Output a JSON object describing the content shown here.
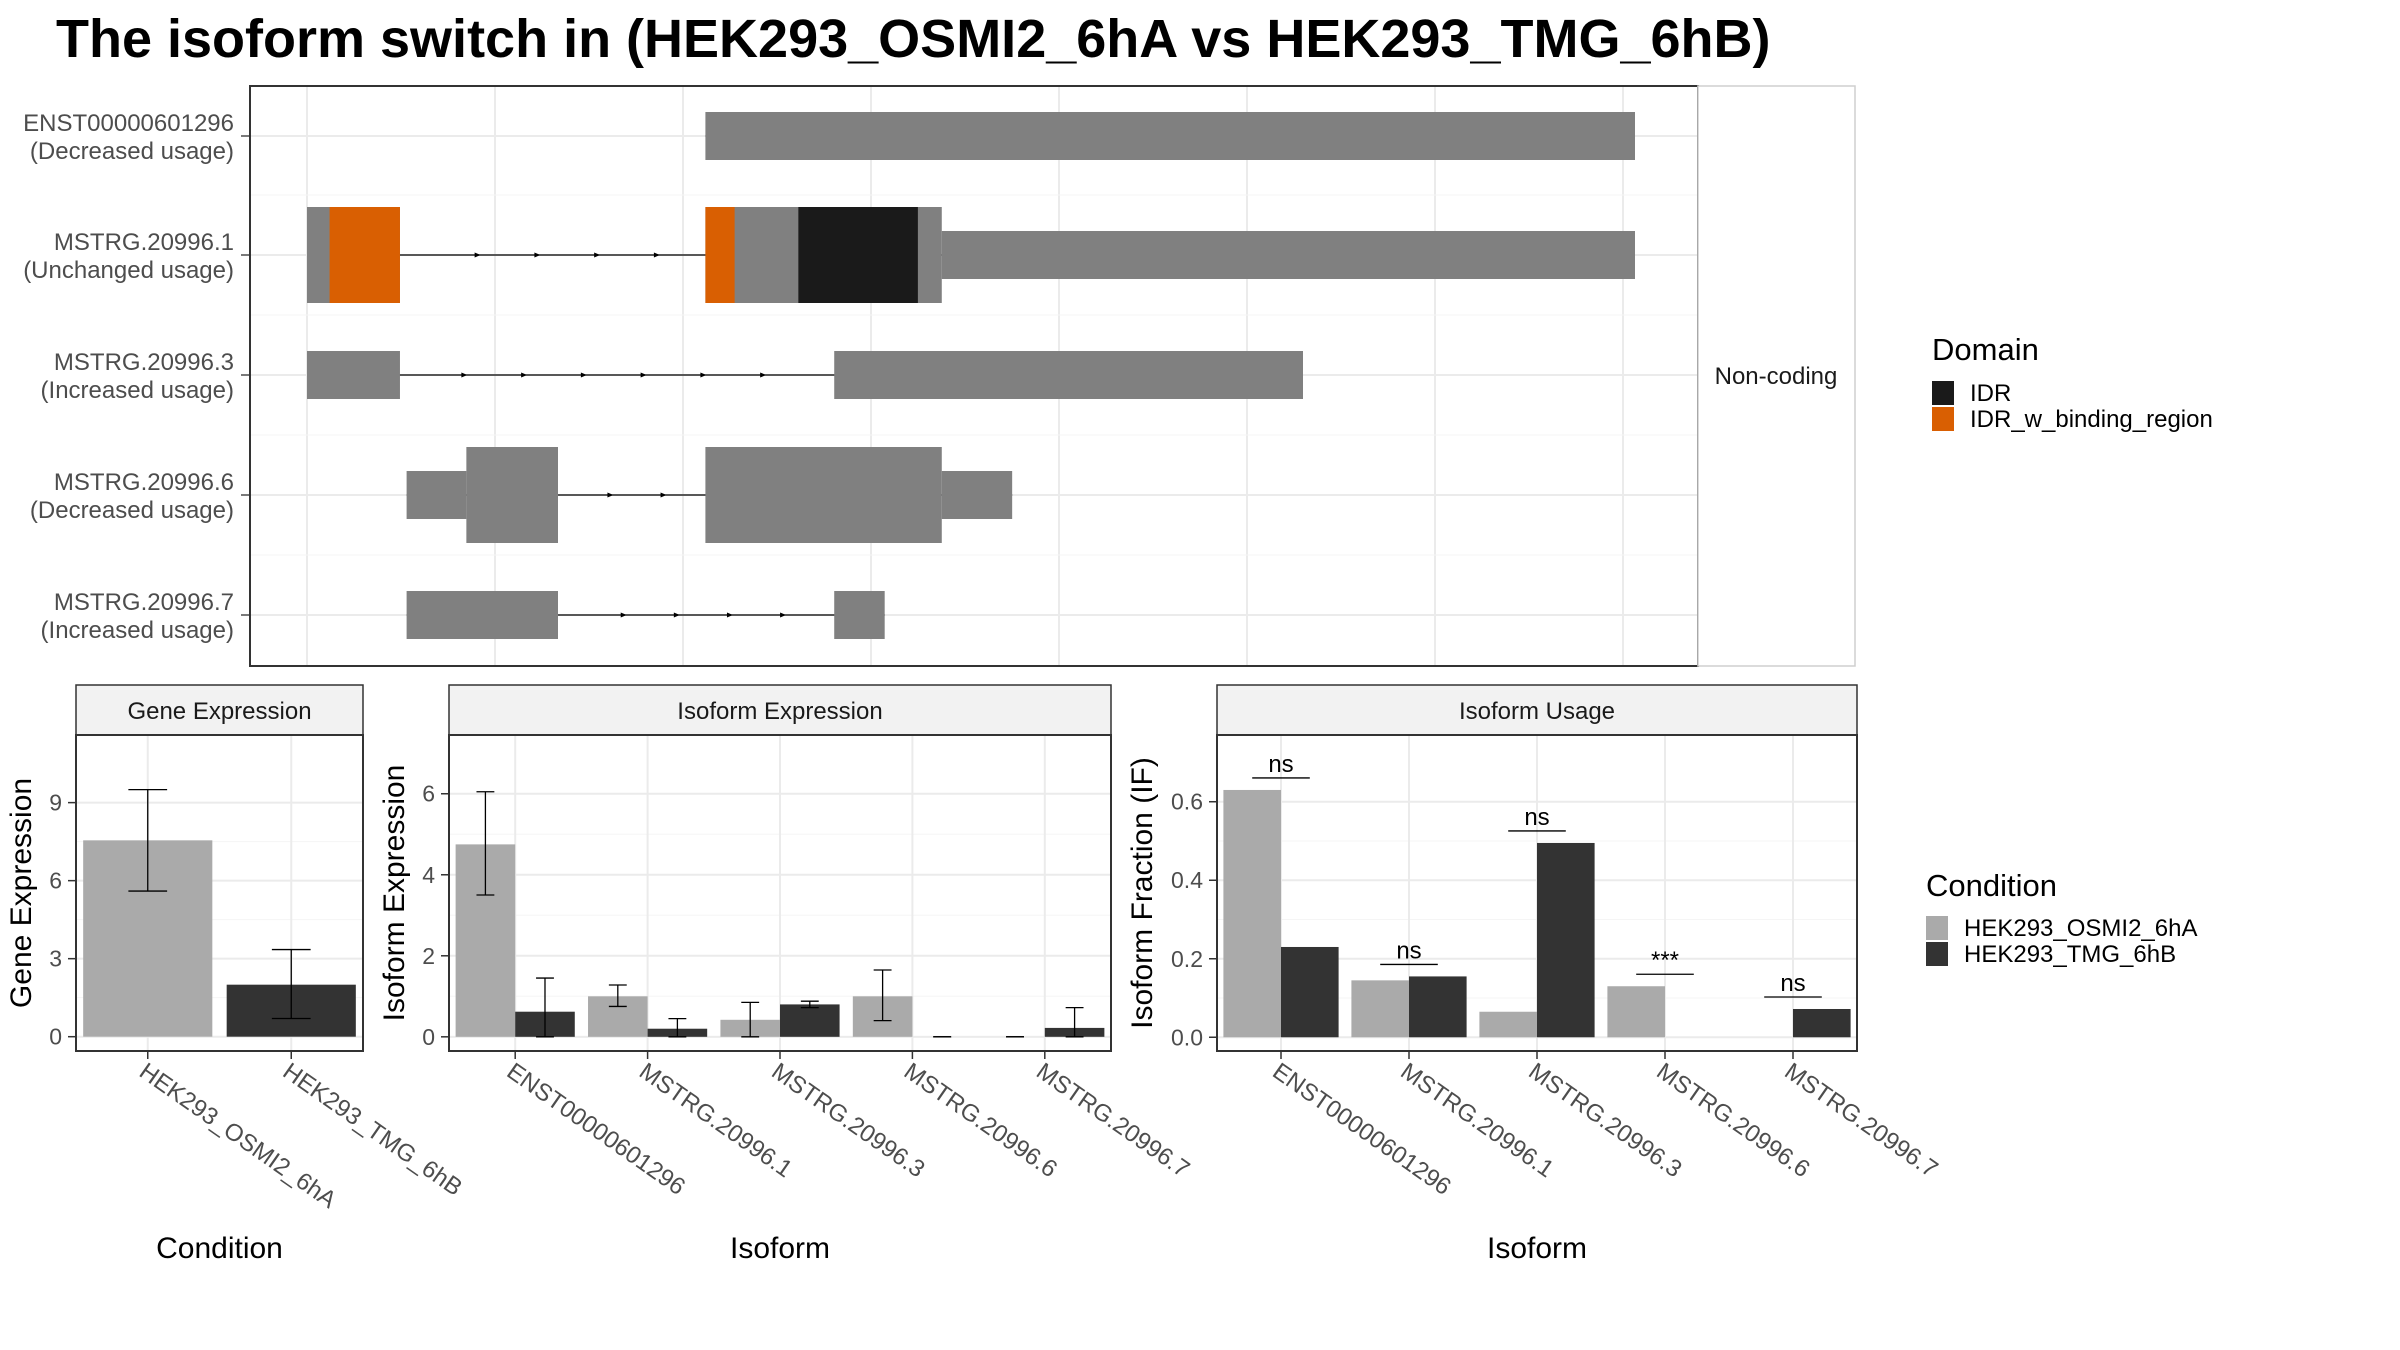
{
  "title": "The isoform switch in  (HEK293_OSMI2_6hA vs HEK293_TMG_6hB)",
  "colors": {
    "exon": "#808080",
    "IDR": "#1a1a1a",
    "IDR_w_binding_region": "#d95f02",
    "cond_a": "#aaaaaa",
    "cond_b": "#333333",
    "grid": "#ebebeb",
    "strip_bg": "#f2f2f2"
  },
  "chart_data": [
    {
      "type": "transcript-structure",
      "facet_label": "Non-coding",
      "xlim": [
        0,
        1000
      ],
      "transcripts": [
        {
          "id": "ENST00000601296",
          "usage": "(Decreased usage)",
          "exons": [
            [
              300,
              1000,
              "narrow"
            ]
          ],
          "domains": [],
          "arrows": []
        },
        {
          "id": "MSTRG.20996.1",
          "usage": "(Unchanged usage)",
          "exons": [
            [
              0,
              70,
              "wide"
            ],
            [
              300,
              478,
              "wide"
            ],
            [
              478,
              1000,
              "narrow"
            ]
          ],
          "domains": [
            [
              17,
              70,
              "IDR_w_binding_region"
            ],
            [
              300,
              322,
              "IDR_w_binding_region"
            ],
            [
              370,
              460,
              "IDR"
            ]
          ],
          "arrows": [
            130,
            175,
            220,
            265
          ]
        },
        {
          "id": "MSTRG.20996.3",
          "usage": "(Increased usage)",
          "exons": [
            [
              0,
              70,
              "narrow"
            ],
            [
              397,
              750,
              "narrow"
            ]
          ],
          "domains": [],
          "arrows": [
            120,
            165,
            210,
            255,
            300,
            345
          ]
        },
        {
          "id": "MSTRG.20996.6",
          "usage": "(Decreased usage)",
          "exons": [
            [
              75,
              120,
              "narrow"
            ],
            [
              120,
              189,
              "wide"
            ],
            [
              300,
              478,
              "wide"
            ],
            [
              478,
              531,
              "narrow"
            ]
          ],
          "domains": [],
          "arrows": [
            230,
            270
          ]
        },
        {
          "id": "MSTRG.20996.7",
          "usage": "(Increased usage)",
          "exons": [
            [
              75,
              189,
              "narrow"
            ],
            [
              397,
              435,
              "narrow"
            ]
          ],
          "domains": [],
          "arrows": [
            240,
            280,
            320,
            360
          ]
        }
      ],
      "legend": {
        "title": "Domain",
        "entries": [
          "IDR",
          "IDR_w_binding_region"
        ]
      }
    },
    {
      "type": "bar",
      "panel": "Gene Expression",
      "xlabel": "Condition",
      "ylabel": "Gene Expression",
      "categories": [
        "HEK293_OSMI2_6hA",
        "HEK293_TMG_6hB"
      ],
      "values": [
        7.55,
        2.0
      ],
      "errors": [
        [
          5.6,
          9.5
        ],
        [
          0.7,
          3.35
        ]
      ],
      "ylim": [
        -0.55,
        11.6
      ],
      "yticks": [
        0,
        3,
        6,
        9
      ]
    },
    {
      "type": "bar",
      "panel": "Isoform Expression",
      "xlabel": "Isoform",
      "ylabel": "Isoform Expression",
      "categories": [
        "ENST00000601296",
        "MSTRG.20996.1",
        "MSTRG.20996.3",
        "MSTRG.20996.6",
        "MSTRG.20996.7"
      ],
      "series": [
        {
          "name": "HEK293_OSMI2_6hA",
          "values": [
            4.75,
            1.0,
            0.42,
            1.0,
            0.0
          ],
          "errors": [
            [
              3.5,
              6.05
            ],
            [
              0.75,
              1.28
            ],
            [
              0.0,
              0.85
            ],
            [
              0.4,
              1.65
            ],
            [
              0.0,
              0.0
            ]
          ]
        },
        {
          "name": "HEK293_TMG_6hB",
          "values": [
            0.62,
            0.2,
            0.8,
            0.0,
            0.22
          ],
          "errors": [
            [
              0.0,
              1.45
            ],
            [
              0.0,
              0.45
            ],
            [
              0.72,
              0.88
            ],
            [
              0.0,
              0.0
            ],
            [
              0.0,
              0.72
            ]
          ]
        }
      ],
      "ylim": [
        -0.35,
        7.45
      ],
      "yticks": [
        0,
        2,
        4,
        6
      ]
    },
    {
      "type": "bar",
      "panel": "Isoform Usage",
      "xlabel": "Isoform",
      "ylabel": "Isoform Fraction (IF)",
      "categories": [
        "ENST00000601296",
        "MSTRG.20996.1",
        "MSTRG.20996.3",
        "MSTRG.20996.6",
        "MSTRG.20996.7"
      ],
      "series": [
        {
          "name": "HEK293_OSMI2_6hA",
          "values": [
            0.63,
            0.145,
            0.065,
            0.13,
            0.0
          ]
        },
        {
          "name": "HEK293_TMG_6hB",
          "values": [
            0.23,
            0.155,
            0.495,
            0.0,
            0.072
          ]
        }
      ],
      "significance": [
        "ns",
        "ns",
        "ns",
        "***",
        "ns"
      ],
      "ylim": [
        -0.035,
        0.77
      ],
      "yticks": [
        0.0,
        0.2,
        0.4,
        0.6
      ],
      "ytick_labels": [
        "0.0",
        "0.2",
        "0.4",
        "0.6"
      ]
    }
  ],
  "legend_condition": {
    "title": "Condition",
    "entries": [
      "HEK293_OSMI2_6hA",
      "HEK293_TMG_6hB"
    ]
  }
}
